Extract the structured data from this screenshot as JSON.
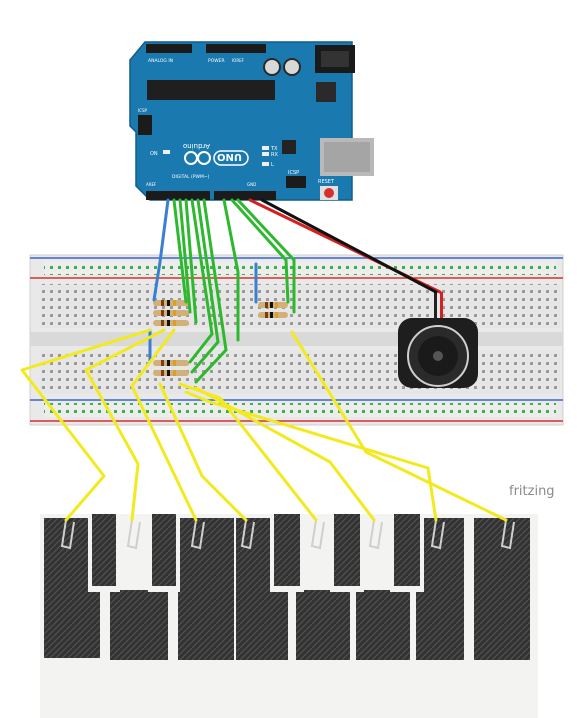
{
  "branding": {
    "label": "fritzing"
  },
  "arduino": {
    "logo_text": "UNO",
    "brand_text": "Arduino",
    "label_tx": "TX",
    "label_rx": "RX",
    "label_l": "L",
    "label_on": "ON",
    "label_reset": "RESET",
    "label_icsp": "ICSP",
    "label_icsp2": "ICSP",
    "label_analog": "ANALOG IN",
    "label_power": "POWER",
    "label_digital": "DIGITAL (PWM~)",
    "label_aref": "AREF",
    "label_gnd": "GND",
    "label_ioref": "IOREF"
  },
  "colors": {
    "board": "#1a7ab0",
    "breadboard": "#e8e8e8",
    "wire_green": "#2db82d",
    "wire_yellow": "#f2ea1e",
    "wire_blue": "#3a7fd0",
    "wire_red": "#d42020",
    "wire_black": "#111111",
    "paper": "#f3f3f1",
    "graphite": "#2e2e2e"
  }
}
